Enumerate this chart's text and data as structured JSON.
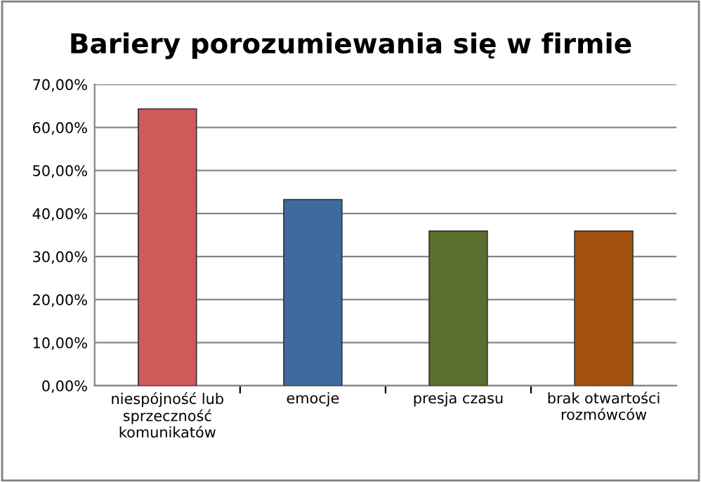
{
  "chart_data": {
    "type": "bar",
    "title": "Bariery porozumiewania się w firmie",
    "categories": [
      "niespójność lub\nsprzeczność\nkomunikatów",
      "emocje",
      "presja czasu",
      "brak otwartości\nrozmówców"
    ],
    "values": [
      64.3,
      43.2,
      35.9,
      35.9
    ],
    "colors": [
      "#d05a58",
      "#3f6a9e",
      "#5a6e2e",
      "#a3520f"
    ],
    "ylim": [
      0,
      70
    ],
    "yticks": [
      {
        "value": 0,
        "label": "0,00%"
      },
      {
        "value": 10,
        "label": "10,00%"
      },
      {
        "value": 20,
        "label": "20,00%"
      },
      {
        "value": 30,
        "label": "30,00%"
      },
      {
        "value": 40,
        "label": "40,00%"
      },
      {
        "value": 50,
        "label": "50,00%"
      },
      {
        "value": 60,
        "label": "60,00%"
      },
      {
        "value": 70,
        "label": "70,00%"
      }
    ],
    "grid": "y",
    "legend": false
  }
}
